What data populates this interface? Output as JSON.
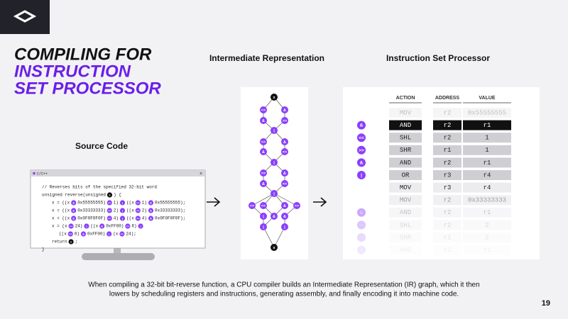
{
  "header": {
    "title_lines": [
      "COMPILING FOR",
      "INSTRUCTION",
      "SET PROCESSOR"
    ]
  },
  "source": {
    "label": "Source Code",
    "window_title": "C/C++",
    "lines": [
      [
        "// Reverses bits of the specified 32-bit word"
      ],
      [
        "unsigned reverse(unsigned",
        {
          "op": "x"
        },
        ") {"
      ],
      [
        "x = ((x",
        {
          "op": "&"
        },
        "0x55555555)",
        {
          "op": "<<"
        },
        "1)",
        {
          "op": "|"
        },
        "((x",
        {
          "op": ">>"
        },
        "1)",
        {
          "op": "&"
        },
        "0x55555555);"
      ],
      [
        "x = ((x",
        {
          "op": "&"
        },
        "0x33333333)",
        {
          "op": "<<"
        },
        "2)",
        {
          "op": "|"
        },
        "((x",
        {
          "op": ">>"
        },
        "2)",
        {
          "op": "&"
        },
        "0x33333333);"
      ],
      [
        "x = ((x",
        {
          "op": "&"
        },
        "0x0F0F0F0F)",
        {
          "op": "<<"
        },
        "4)",
        {
          "op": "|"
        },
        "((x",
        {
          "op": ">>"
        },
        "4)",
        {
          "op": "&"
        },
        "0x0F0F0F0F);"
      ],
      [
        "x = (x",
        {
          "op": "<<"
        },
        "24)",
        {
          "op": "|"
        },
        "((x",
        {
          "op": "&"
        },
        "0xFF00)",
        {
          "op": "<<"
        },
        "8)",
        {
          "op": "|"
        }
      ],
      [
        "((x",
        {
          "op": ">>"
        },
        "8)",
        {
          "op": "&"
        },
        "0xFF00)",
        {
          "op": "|"
        },
        "(x",
        {
          "op": ">>"
        },
        "24);"
      ],
      [
        "return",
        {
          "op": "x"
        },
        ";"
      ],
      [
        "}"
      ]
    ]
  },
  "ir": {
    "label": "Intermediate Representation",
    "nodes": [
      "x",
      "<<",
      "&",
      "&",
      ">>",
      "|",
      ">>",
      "&",
      "&",
      "<<",
      "|",
      ">>",
      "&",
      "&",
      "<<",
      "|",
      ">>",
      "<<",
      "&",
      ">>",
      "|",
      "&",
      "&",
      "|",
      "|",
      "x"
    ]
  },
  "isp": {
    "label": "Instruction Set Processor",
    "columns": [
      "ACTION",
      "ADDRESS",
      "VALUE"
    ],
    "rows": [
      {
        "action": "MOV",
        "address": "r2",
        "value": "0x55555555"
      },
      {
        "op": "&",
        "action": "AND",
        "address": "r2",
        "value": "r1"
      },
      {
        "op": "<<",
        "action": "SHL",
        "address": "r2",
        "value": "1"
      },
      {
        "op": ">>",
        "action": "SHR",
        "address": "r1",
        "value": "1"
      },
      {
        "op": "&",
        "action": "AND",
        "address": "r2",
        "value": "r1"
      },
      {
        "op": "|",
        "action": "OR",
        "address": "r3",
        "value": "r4"
      },
      {
        "action": "MOV",
        "address": "r3",
        "value": "r4"
      },
      {
        "action": "MOV",
        "address": "r2",
        "value": "0x33333333"
      },
      {
        "op": "&",
        "action": "AND",
        "address": "r2",
        "value": "r1"
      },
      {
        "op": "<<",
        "action": "SHL",
        "address": "r2",
        "value": "2"
      },
      {
        "op": ">>",
        "action": "SHR",
        "address": "r1",
        "value": "2"
      },
      {
        "op": "&",
        "action": "AND",
        "address": "r2",
        "value": "r1"
      }
    ]
  },
  "caption_lines": [
    "When compiling a 32-bit bit-reverse function, a CPU compiler builds an Intermediate Representation (IR) graph, which it then",
    "lowers by scheduling registers and instructions, generating assembly, and finally encoding it into machine code."
  ],
  "page_number": "19"
}
